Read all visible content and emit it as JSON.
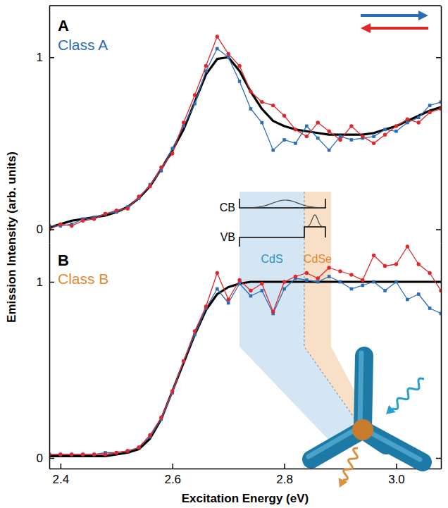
{
  "chart_data": [
    {
      "type": "line",
      "panel_label": "A",
      "title": "Class A",
      "y_label": "Emission Intensity (arb. units)",
      "x": [
        2.38,
        2.4,
        2.42,
        2.44,
        2.46,
        2.48,
        2.5,
        2.52,
        2.54,
        2.56,
        2.58,
        2.6,
        2.62,
        2.64,
        2.66,
        2.68,
        2.7,
        2.72,
        2.74,
        2.76,
        2.78,
        2.8,
        2.82,
        2.84,
        2.86,
        2.88,
        2.9,
        2.92,
        2.94,
        2.96,
        2.98,
        3.0,
        3.02,
        3.04,
        3.06,
        3.08
      ],
      "xlim": [
        2.38,
        3.08
      ],
      "ylim": [
        -0.08,
        1.3
      ],
      "yticks": [
        0,
        1
      ],
      "tick_labels": "y",
      "series": [
        {
          "color": "#000000",
          "marker": "none",
          "line_style": "solid",
          "values": [
            0.01,
            0.03,
            0.05,
            0.06,
            0.07,
            0.08,
            0.1,
            0.13,
            0.18,
            0.25,
            0.35,
            0.46,
            0.58,
            0.74,
            0.9,
            0.99,
            1.0,
            0.92,
            0.8,
            0.7,
            0.63,
            0.6,
            0.58,
            0.57,
            0.56,
            0.55,
            0.55,
            0.55,
            0.55,
            0.56,
            0.58,
            0.6,
            0.63,
            0.66,
            0.69,
            0.71
          ]
        },
        {
          "color": "#2a6db5",
          "marker": "square",
          "line_style": "solid",
          "values": [
            0.02,
            0.02,
            0.03,
            0.06,
            0.07,
            0.09,
            0.1,
            0.13,
            0.18,
            0.26,
            0.34,
            0.47,
            0.6,
            0.73,
            0.92,
            1.05,
            1.0,
            0.86,
            0.7,
            0.62,
            0.46,
            0.52,
            0.5,
            0.6,
            0.53,
            0.46,
            0.54,
            0.52,
            0.53,
            0.54,
            0.58,
            0.57,
            0.62,
            0.65,
            0.72,
            0.74
          ]
        },
        {
          "color": "#e0262b",
          "marker": "circle",
          "line_style": "solid",
          "values": [
            0.0,
            0.03,
            0.02,
            0.05,
            0.06,
            0.09,
            0.11,
            0.12,
            0.19,
            0.25,
            0.36,
            0.44,
            0.62,
            0.78,
            0.95,
            1.12,
            1.02,
            0.95,
            0.8,
            0.74,
            0.72,
            0.66,
            0.58,
            0.54,
            0.62,
            0.57,
            0.52,
            0.6,
            0.54,
            0.5,
            0.55,
            0.6,
            0.64,
            0.62,
            0.68,
            0.7
          ]
        }
      ]
    },
    {
      "type": "line",
      "panel_label": "B",
      "title": "Class B",
      "x_label": "Excitation Energy (eV)",
      "x": [
        2.38,
        2.4,
        2.42,
        2.44,
        2.46,
        2.48,
        2.5,
        2.52,
        2.54,
        2.56,
        2.58,
        2.6,
        2.62,
        2.64,
        2.66,
        2.68,
        2.7,
        2.72,
        2.74,
        2.76,
        2.78,
        2.8,
        2.82,
        2.84,
        2.86,
        2.88,
        2.9,
        2.92,
        2.94,
        2.96,
        2.98,
        3.0,
        3.02,
        3.04,
        3.06,
        3.08
      ],
      "xlim": [
        2.38,
        3.08
      ],
      "ylim": [
        -0.06,
        1.22
      ],
      "xticks": [
        2.4,
        2.6,
        2.8,
        {
          "value": 3.0,
          "label": "3.0"
        }
      ],
      "yticks": [
        0,
        1
      ],
      "annotations": [
        "CB",
        "VB",
        "CdS",
        "CdSe"
      ],
      "series": [
        {
          "color": "#000000",
          "marker": "none",
          "line_style": "solid",
          "values": [
            0.01,
            0.01,
            0.01,
            0.01,
            0.01,
            0.01,
            0.02,
            0.03,
            0.05,
            0.11,
            0.22,
            0.38,
            0.54,
            0.7,
            0.84,
            0.93,
            0.97,
            0.99,
            1.0,
            1.0,
            1.0,
            1.0,
            1.0,
            1.0,
            1.0,
            1.0,
            1.0,
            1.0,
            1.0,
            1.0,
            1.0,
            1.0,
            1.0,
            1.0,
            1.0,
            1.0
          ]
        },
        {
          "color": "#2a6db5",
          "marker": "square",
          "line_style": "solid",
          "values": [
            0.02,
            0.02,
            0.02,
            0.02,
            0.02,
            0.03,
            0.03,
            0.04,
            0.06,
            0.12,
            0.22,
            0.37,
            0.55,
            0.7,
            0.85,
            0.96,
            0.88,
            0.99,
            0.92,
            0.95,
            0.82,
            0.96,
            1.02,
            1.01,
            1.0,
            1.03,
            1.0,
            0.96,
            0.98,
            1.0,
            0.95,
            1.0,
            0.9,
            0.93,
            0.85,
            0.82
          ]
        },
        {
          "color": "#e0262b",
          "marker": "circle",
          "line_style": "solid",
          "values": [
            0.02,
            0.02,
            0.02,
            0.02,
            0.02,
            0.02,
            0.03,
            0.04,
            0.06,
            0.13,
            0.23,
            0.38,
            0.55,
            0.72,
            0.86,
            1.05,
            0.9,
            1.01,
            0.95,
            0.99,
            0.83,
            1.0,
            1.03,
            1.05,
            1.02,
            1.08,
            1.06,
            1.04,
            1.01,
            1.15,
            1.09,
            1.1,
            1.2,
            1.1,
            1.05,
            0.95
          ]
        }
      ]
    }
  ]
}
